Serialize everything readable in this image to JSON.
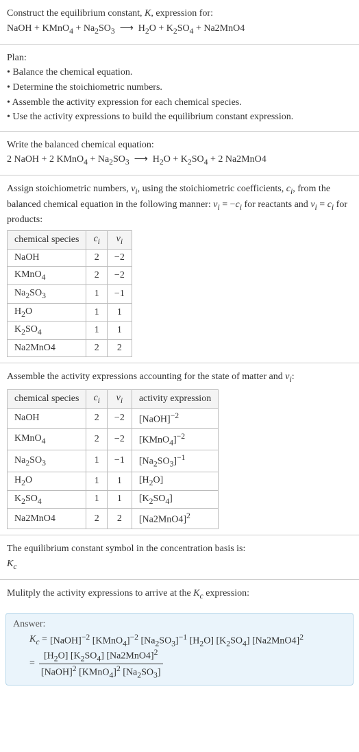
{
  "intro": {
    "line1_pre": "Construct the equilibrium constant, ",
    "line1_K": "K",
    "line1_post": ", expression for:",
    "reaction_html": "NaOH + KMnO<sub>4</sub> + Na<sub>2</sub>SO<sub>3</sub> &nbsp;⟶&nbsp; H<sub>2</sub>O + K<sub>2</sub>SO<sub>4</sub> + Na2MnO4"
  },
  "plan": {
    "title": "Plan:",
    "items": [
      "• Balance the chemical equation.",
      "• Determine the stoichiometric numbers.",
      "• Assemble the activity expression for each chemical species.",
      "• Use the activity expressions to build the equilibrium constant expression."
    ]
  },
  "balanced": {
    "title": "Write the balanced chemical equation:",
    "reaction_html": "2 NaOH + 2 KMnO<sub>4</sub> + Na<sub>2</sub>SO<sub>3</sub> &nbsp;⟶&nbsp; H<sub>2</sub>O + K<sub>2</sub>SO<sub>4</sub> + 2 Na2MnO4"
  },
  "stoich": {
    "text_html": "Assign stoichiometric numbers, <i>ν<sub>i</sub></i>, using the stoichiometric coefficients, <i>c<sub>i</sub></i>, from the balanced chemical equation in the following manner: <i>ν<sub>i</sub></i> = −<i>c<sub>i</sub></i> for reactants and <i>ν<sub>i</sub></i> = <i>c<sub>i</sub></i> for products:",
    "headers": {
      "species": "chemical species",
      "c": "c<sub>i</sub>",
      "v": "ν<sub>i</sub>"
    },
    "rows": [
      {
        "species_html": "NaOH",
        "c": "2",
        "v": "−2"
      },
      {
        "species_html": "KMnO<sub>4</sub>",
        "c": "2",
        "v": "−2"
      },
      {
        "species_html": "Na<sub>2</sub>SO<sub>3</sub>",
        "c": "1",
        "v": "−1"
      },
      {
        "species_html": "H<sub>2</sub>O",
        "c": "1",
        "v": "1"
      },
      {
        "species_html": "K<sub>2</sub>SO<sub>4</sub>",
        "c": "1",
        "v": "1"
      },
      {
        "species_html": "Na2MnO4",
        "c": "2",
        "v": "2"
      }
    ]
  },
  "activity": {
    "text_html": "Assemble the activity expressions accounting for the state of matter and <i>ν<sub>i</sub></i>:",
    "headers": {
      "species": "chemical species",
      "c": "c<sub>i</sub>",
      "v": "ν<sub>i</sub>",
      "expr": "activity expression"
    },
    "rows": [
      {
        "species_html": "NaOH",
        "c": "2",
        "v": "−2",
        "expr_html": "[NaOH]<sup>−2</sup>"
      },
      {
        "species_html": "KMnO<sub>4</sub>",
        "c": "2",
        "v": "−2",
        "expr_html": "[KMnO<sub>4</sub>]<sup>−2</sup>"
      },
      {
        "species_html": "Na<sub>2</sub>SO<sub>3</sub>",
        "c": "1",
        "v": "−1",
        "expr_html": "[Na<sub>2</sub>SO<sub>3</sub>]<sup>−1</sup>"
      },
      {
        "species_html": "H<sub>2</sub>O",
        "c": "1",
        "v": "1",
        "expr_html": "[H<sub>2</sub>O]"
      },
      {
        "species_html": "K<sub>2</sub>SO<sub>4</sub>",
        "c": "1",
        "v": "1",
        "expr_html": "[K<sub>2</sub>SO<sub>4</sub>]"
      },
      {
        "species_html": "Na2MnO4",
        "c": "2",
        "v": "2",
        "expr_html": "[Na2MnO4]<sup>2</sup>"
      }
    ]
  },
  "symbol": {
    "line1": "The equilibrium constant symbol in the concentration basis is:",
    "kc_html": "<i>K<sub>c</sub></i>"
  },
  "multiply": {
    "text_html": "Mulitply the activity expressions to arrive at the <i>K<sub>c</sub></i> expression:"
  },
  "answer": {
    "title": "Answer:",
    "lhs_html": "<i>K<sub>c</sub></i> = ",
    "flat_html": "[NaOH]<sup>−2</sup> [KMnO<sub>4</sub>]<sup>−2</sup> [Na<sub>2</sub>SO<sub>3</sub>]<sup>−1</sup> [H<sub>2</sub>O] [K<sub>2</sub>SO<sub>4</sub>] [Na2MnO4]<sup>2</sup>",
    "eq": " = ",
    "num_html": "[H<sub>2</sub>O] [K<sub>2</sub>SO<sub>4</sub>] [Na2MnO4]<sup>2</sup>",
    "den_html": "[NaOH]<sup>2</sup> [KMnO<sub>4</sub>]<sup>2</sup> [Na<sub>2</sub>SO<sub>3</sub>]"
  }
}
